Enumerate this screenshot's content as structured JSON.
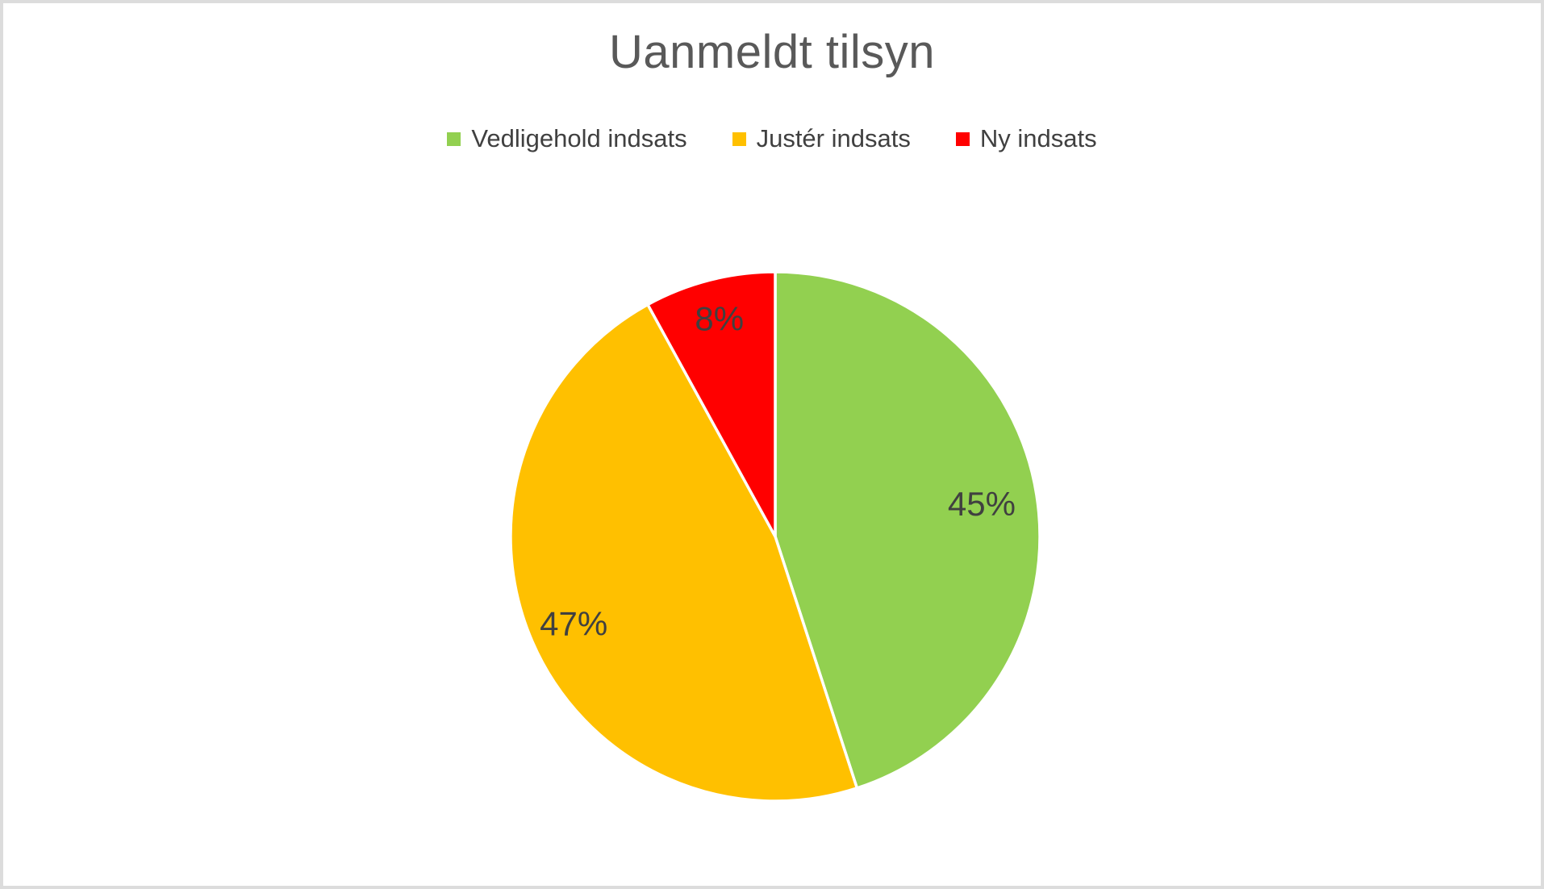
{
  "page": {
    "background": "#ffffff",
    "frame_border_color": "#dcdcdc"
  },
  "chart_data": {
    "type": "pie",
    "title": "Uanmeldt tilsyn",
    "categories": [
      "Vedligehold indsats",
      "Justér indsats",
      "Ny indsats"
    ],
    "values": [
      45,
      47,
      8
    ],
    "data_labels": [
      "45%",
      "47%",
      "8%"
    ],
    "colors": [
      "#92d050",
      "#ffc000",
      "#ff0000"
    ],
    "start_angle_deg": 0,
    "direction": "clockwise",
    "legend_position": "top",
    "title_color": "#595959",
    "label_color": "#404040",
    "slice_border_color": "#ffffff"
  }
}
